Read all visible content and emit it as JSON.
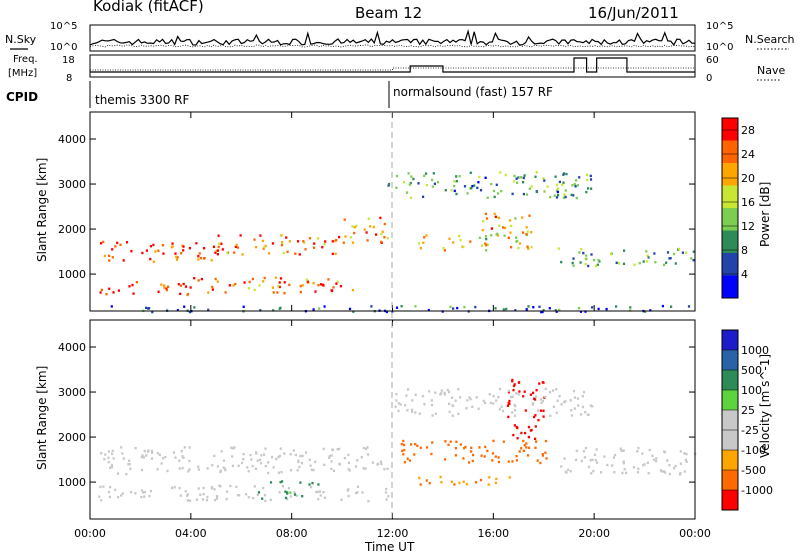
{
  "header": {
    "station": "Kodiak (fitACF)",
    "beam": "Beam 12",
    "date": "16/Jun/2011"
  },
  "summary": {
    "nsky_label": "N.Sky",
    "nsearch_label": "N.Search",
    "freq_label_1": "Freq.",
    "freq_label_2": "[MHz]",
    "nave_label": "Nave",
    "cpid_label": "CPID",
    "nsky_ticks": [
      "10^5",
      "10^0"
    ],
    "nsearch_ticks": [
      "10^5",
      "10^0"
    ],
    "freq_ticks": [
      "18",
      "8"
    ],
    "nave_ticks": [
      "60",
      "0"
    ],
    "cpid_1": "themis 3300 RF",
    "cpid_2": "normalsound (fast) 157 RF"
  },
  "colors": {
    "power": [
      "#0000ff",
      "#2244aa",
      "#2e8b57",
      "#7ccd52",
      "#c8e632",
      "#ffa500",
      "#ff6400",
      "#ff0000"
    ],
    "velocity": [
      "#1c1cc8",
      "#2a62a8",
      "#2e8b57",
      "#5fd240",
      "#c8c8c8",
      "#c8c8c8",
      "#ffa500",
      "#ff6a00",
      "#ff0000"
    ],
    "ground": "#c8c8c8"
  },
  "chart_data": [
    {
      "type": "heatmap",
      "name": "Power",
      "ylabel": "Slant Range [km]",
      "xlabel": "Time UT",
      "x_ticks": [
        "00:00",
        "04:00",
        "08:00",
        "12:00",
        "16:00",
        "20:00",
        "00:00"
      ],
      "x_range_hours": [
        0,
        24
      ],
      "y_ticks": [
        "1000",
        "2000",
        "3000",
        "4000"
      ],
      "y_range_km": [
        180,
        4600
      ],
      "colorbar_label": "Power [dB]",
      "colorbar_ticks": [
        "4",
        "8",
        "12",
        "16",
        "20",
        "24",
        "28"
      ],
      "colorbar_range": [
        0,
        30
      ],
      "bands": [
        {
          "t": [
            0.3,
            5.0
          ],
          "r": [
            1300,
            1750
          ],
          "level": 26
        },
        {
          "t": [
            5.0,
            10.0
          ],
          "r": [
            1450,
            1900
          ],
          "level": 25
        },
        {
          "t": [
            10.0,
            11.8
          ],
          "r": [
            1700,
            2300
          ],
          "level": 22
        },
        {
          "t": [
            0.3,
            4.0
          ],
          "r": [
            550,
            850
          ],
          "level": 27
        },
        {
          "t": [
            4.0,
            10.5
          ],
          "r": [
            600,
            950
          ],
          "level": 24
        },
        {
          "t": [
            13.0,
            17.5
          ],
          "r": [
            1550,
            1950
          ],
          "level": 18
        },
        {
          "t": [
            15.5,
            17.5
          ],
          "r": [
            1900,
            2400
          ],
          "level": 20
        },
        {
          "t": [
            18.5,
            24.0
          ],
          "r": [
            1200,
            1600
          ],
          "level": 12
        },
        {
          "t": [
            11.8,
            20.0
          ],
          "r": [
            2700,
            3300
          ],
          "level": 10
        },
        {
          "t": [
            0.3,
            24.0
          ],
          "r": [
            180,
            320
          ],
          "level": 6
        }
      ]
    },
    {
      "type": "heatmap",
      "name": "Velocity",
      "ylabel": "Slant Range [km]",
      "xlabel": "Time UT",
      "x_ticks": [
        "00:00",
        "04:00",
        "08:00",
        "12:00",
        "16:00",
        "20:00",
        "00:00"
      ],
      "x_range_hours": [
        0,
        24
      ],
      "y_ticks": [
        "1000",
        "2000",
        "3000",
        "4000"
      ],
      "y_range_km": [
        180,
        4600
      ],
      "colorbar_label": "Velocity [m s^-1]",
      "colorbar_ticks": [
        "1000",
        "500",
        "100",
        "25",
        "-25",
        "-100",
        "-500",
        "-1000"
      ],
      "bands": [
        {
          "t": [
            0.3,
            11.8
          ],
          "r": [
            1200,
            1800
          ],
          "value": 0,
          "ground": true
        },
        {
          "t": [
            0.3,
            11.8
          ],
          "r": [
            600,
            950
          ],
          "value": 0,
          "ground": true
        },
        {
          "t": [
            6.5,
            8.5
          ],
          "r": [
            650,
            850
          ],
          "value": 60
        },
        {
          "t": [
            7.0,
            9.5
          ],
          "r": [
            950,
            1080
          ],
          "value": 60
        },
        {
          "t": [
            12.3,
            18.3
          ],
          "r": [
            1450,
            1950
          ],
          "value": -400
        },
        {
          "t": [
            16.5,
            18.0
          ],
          "r": [
            1950,
            3300
          ],
          "value": -600
        },
        {
          "t": [
            13.0,
            17.0
          ],
          "r": [
            950,
            1150
          ],
          "value": -80
        },
        {
          "t": [
            18.5,
            24.0
          ],
          "r": [
            1200,
            1800
          ],
          "value": 0,
          "ground": true
        },
        {
          "t": [
            12.0,
            20.0
          ],
          "r": [
            2500,
            3100
          ],
          "value": 0,
          "ground": true
        }
      ]
    }
  ]
}
